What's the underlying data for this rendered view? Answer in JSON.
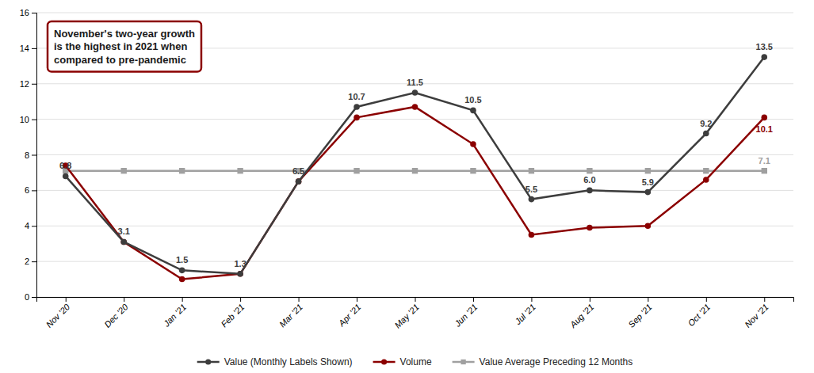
{
  "chart_data": {
    "type": "line",
    "categories": [
      "Nov '20",
      "Dec '20",
      "Jan '21",
      "Feb '21",
      "Mar '21",
      "Apr '21",
      "May '21",
      "Jun '21",
      "Jul '21",
      "Aug '21",
      "Sep '21",
      "Oct '21",
      "Nov '21"
    ],
    "series": [
      {
        "name": "Value (Monthly Labels Shown)",
        "color": "#3d3d3d",
        "marker": "circle",
        "values": [
          6.8,
          3.1,
          1.5,
          1.3,
          6.5,
          10.7,
          11.5,
          10.5,
          5.5,
          6.0,
          5.9,
          9.2,
          13.5
        ],
        "value_labels": [
          "6.8",
          "3.1",
          "1.5",
          "1.3",
          "6.5",
          "10.7",
          "11.5",
          "10.5",
          "5.5",
          "6.0",
          "5.9",
          "9.2",
          "13.5"
        ]
      },
      {
        "name": "Volume",
        "color": "#8B0000",
        "marker": "circle",
        "values": [
          7.4,
          3.1,
          1.0,
          1.3,
          6.5,
          10.1,
          10.7,
          8.6,
          3.5,
          3.9,
          4.0,
          6.6,
          10.1
        ],
        "value_labels": [
          null,
          null,
          null,
          null,
          null,
          null,
          null,
          null,
          null,
          null,
          null,
          null,
          "10.1"
        ]
      },
      {
        "name": "Value Average Preceding 12 Months",
        "color": "#a0a0a0",
        "marker": "square",
        "values": [
          7.1,
          7.1,
          7.1,
          7.1,
          7.1,
          7.1,
          7.1,
          7.1,
          7.1,
          7.1,
          7.1,
          7.1,
          7.1
        ],
        "value_labels": [
          null,
          null,
          null,
          null,
          null,
          null,
          null,
          null,
          null,
          null,
          null,
          null,
          "7.1"
        ]
      }
    ],
    "ylim": [
      0,
      16
    ],
    "yticks": [
      0,
      2,
      4,
      6,
      8,
      10,
      12,
      14,
      16
    ],
    "grid": true,
    "legend": "bottom",
    "data_labels": true,
    "annotations": [
      "November's two-year growth\nis the highest in 2021 when\ncompared to pre-pandemic"
    ]
  }
}
